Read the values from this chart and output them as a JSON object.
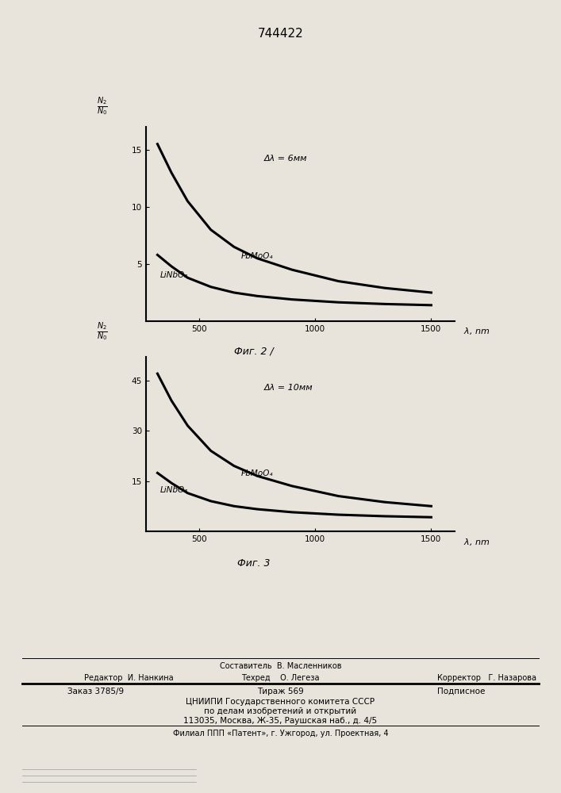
{
  "title": "744422",
  "fig1_label": "Фиг. 2 /",
  "fig2_label": "Фиг. 3",
  "annotation1": "Δλ = 6мм",
  "annotation2": "Δλ = 10мм",
  "curve1_label1": "PbMoO₄",
  "curve2_label1": "LiNbO₃",
  "curve1_label2": "PbMoO₄",
  "curve2_label2": "LiNbO₃",
  "pbmoo4_x1": [
    320,
    380,
    450,
    550,
    650,
    750,
    900,
    1100,
    1300,
    1500
  ],
  "pbmoo4_y1": [
    15.5,
    13.0,
    10.5,
    8.0,
    6.5,
    5.5,
    4.5,
    3.5,
    2.9,
    2.5
  ],
  "linbo3_x1": [
    320,
    380,
    450,
    550,
    650,
    750,
    900,
    1100,
    1300,
    1500
  ],
  "linbo3_y1": [
    5.8,
    4.8,
    3.8,
    3.0,
    2.5,
    2.2,
    1.9,
    1.65,
    1.5,
    1.4
  ],
  "pbmoo4_x2": [
    320,
    380,
    450,
    550,
    650,
    750,
    900,
    1100,
    1300,
    1500
  ],
  "pbmoo4_y2": [
    47.0,
    39.0,
    31.5,
    24.0,
    19.5,
    16.5,
    13.5,
    10.5,
    8.7,
    7.5
  ],
  "linbo3_x2": [
    320,
    380,
    450,
    550,
    650,
    750,
    900,
    1100,
    1300,
    1500
  ],
  "linbo3_y2": [
    17.4,
    14.4,
    11.4,
    9.0,
    7.5,
    6.6,
    5.7,
    4.95,
    4.5,
    4.2
  ],
  "yticks1": [
    5,
    10,
    15
  ],
  "yticks2": [
    15,
    30,
    45
  ],
  "xticks": [
    500,
    1000,
    1500
  ],
  "background": "#e8e4dc",
  "plot_bg": "#e8e4dc",
  "line_color": "#000000",
  "footer_sestavitel": "Составитель  В. Масленников",
  "footer_redaktor": "Редактор  И. Нанкина",
  "footer_tehred": "Техред    О. Легеза",
  "footer_korrektor": "Корректор   Г. Назарова",
  "footer_zakaz": "Заказ 3785/9",
  "footer_tirazh": "Тираж 569",
  "footer_podpisnoe": "Подписное",
  "footer_tsniip1": "ЦНИИПИ Государственного комитета СССР",
  "footer_tsniip2": "по делам изобретений и открытий",
  "footer_tsniip3": "113035, Москва, Ж-35, Раушская наб., д. 4/5",
  "footer_filial": "Филиал ППП «Патент», г. Ужгород, ул. Проектная, 4"
}
